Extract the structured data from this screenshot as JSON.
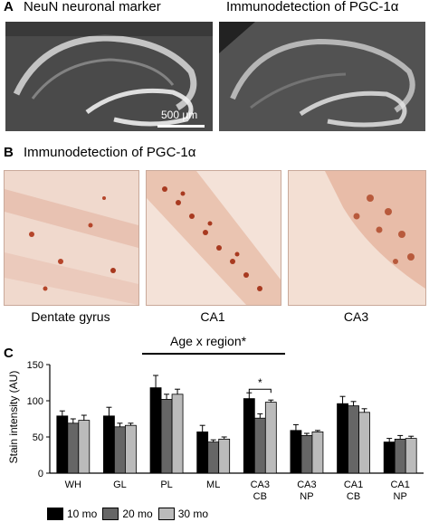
{
  "panel_a": {
    "letter": "A",
    "left_title": "NeuN neuronal marker",
    "right_title": "Immunodetection of PGC-1α",
    "scale_bar": "500 µm"
  },
  "panel_b": {
    "letter": "B",
    "title": "Immunodetection of PGC-1α",
    "images": [
      {
        "label": "Dentate gyrus"
      },
      {
        "label": "CA1"
      },
      {
        "label": "CA3"
      }
    ]
  },
  "panel_c": {
    "letter": "C",
    "annotation": "Age x region*",
    "significance": "*"
  },
  "chart_data": {
    "type": "bar",
    "ylabel": "Stain intensity (AU)",
    "ylim": [
      0,
      150
    ],
    "yticks": [
      0,
      50,
      100,
      150
    ],
    "categories": [
      "WH",
      "GL",
      "PL",
      "ML",
      "CA3\nCB",
      "CA3\nNP",
      "CA1\nCB",
      "CA1\nNP"
    ],
    "series": [
      {
        "name": "10 mo",
        "color": "#000000",
        "values": [
          79,
          79,
          118,
          57,
          103,
          59,
          96,
          43
        ],
        "errors": [
          7,
          12,
          17,
          9,
          8,
          8,
          10,
          5
        ]
      },
      {
        "name": "20 mo",
        "color": "#666666",
        "values": [
          69,
          64,
          102,
          43,
          76,
          52,
          93,
          47
        ],
        "errors": [
          6,
          5,
          7,
          3,
          6,
          3,
          6,
          5
        ]
      },
      {
        "name": "30 mo",
        "color": "#bbbbbb",
        "values": [
          73,
          66,
          109,
          47,
          98,
          57,
          84,
          48
        ],
        "errors": [
          7,
          3,
          7,
          3,
          3,
          2,
          5,
          3
        ]
      }
    ],
    "legend_position": "bottom"
  }
}
